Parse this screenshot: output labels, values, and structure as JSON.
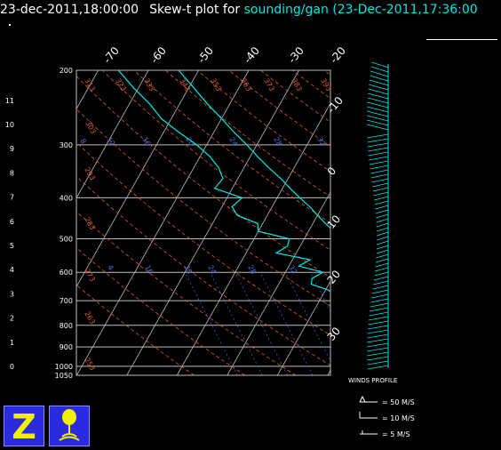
{
  "header": {
    "time_label": "23-dec-2011,18:00:00",
    "plot_label": "Skew-t plot for",
    "source_label": "sounding/gan (23-Dec-2011,17:36:00"
  },
  "chart_data": {
    "type": "line",
    "subtype": "skew-t log-p diagram",
    "y_axis_left": {
      "height_km_ticks": [
        "11",
        "10",
        "9",
        "8",
        "7",
        "6",
        "5",
        "4",
        "3",
        "2",
        "1",
        "0"
      ],
      "pressure_hpa_ticks": [
        "200",
        "300",
        "400",
        "500",
        "600",
        "700",
        "800",
        "900",
        "1000",
        "1050"
      ],
      "scale": "log-pressure"
    },
    "x_axis_top_temperature_c": [
      "-70",
      "-60",
      "-50",
      "-40",
      "-30",
      "-20"
    ],
    "x_axis_right_temperature_c": [
      "-10",
      "0",
      "10",
      "20",
      "30"
    ],
    "dry_adiabat_labels_k": [
      "313",
      "323",
      "333",
      "343",
      "353",
      "363",
      "373",
      "383",
      "393",
      "303",
      "293",
      "283",
      "273",
      "263",
      "253"
    ],
    "mixing_ratio_labels": [
      "8",
      "12",
      "16",
      "20",
      "24",
      "28",
      "32",
      "4",
      "16",
      "20",
      "24",
      "28",
      "32"
    ],
    "grid": true,
    "series": [
      {
        "color": "#00e5e5",
        "p": [
          1000,
          980,
          960,
          940,
          920,
          900,
          880,
          860,
          840,
          820,
          800,
          780,
          760,
          740,
          720,
          700,
          680,
          660,
          640,
          620,
          600,
          580,
          560,
          540,
          520,
          500,
          480,
          460,
          440,
          420,
          400,
          380,
          360,
          340,
          320,
          300,
          280,
          260,
          240,
          220,
          200
        ],
        "t": [
          27.5,
          26.0,
          25.0,
          24.0,
          23.0,
          22.5,
          21.5,
          20.5,
          19.0,
          18.0,
          17.0,
          16.0,
          15.0,
          14.0,
          13.0,
          12.0,
          10.5,
          9.5,
          8.5,
          7.5,
          6.5,
          5.0,
          3.5,
          2.0,
          0.0,
          -2.5,
          -5.0,
          -7.5,
          -10.0,
          -12.5,
          -15.5,
          -18.5,
          -21.5,
          -25.0,
          -28.5,
          -32.0,
          -36.0,
          -40.0,
          -44.5,
          -49.0,
          -54.0
        ]
      },
      {
        "color": "#00e5e5",
        "p": [
          1000,
          980,
          960,
          940,
          920,
          900,
          880,
          860,
          840,
          820,
          800,
          780,
          760,
          740,
          720,
          700,
          680,
          660,
          640,
          620,
          600,
          580,
          560,
          540,
          520,
          500,
          480,
          460,
          440,
          420,
          400,
          380,
          360,
          340,
          320,
          300,
          280,
          260,
          240,
          220,
          200
        ],
        "t": [
          25.0,
          22.0,
          23.0,
          21.0,
          22.0,
          20.5,
          18.0,
          17.0,
          16.0,
          13.5,
          12.5,
          9.0,
          10.0,
          5.0,
          7.0,
          3.0,
          2.5,
          0.5,
          -3.5,
          -4.0,
          -2.5,
          -8.0,
          -6.5,
          -14.0,
          -12.5,
          -13.0,
          -20.0,
          -21.0,
          -26.0,
          -28.0,
          -27.0,
          -33.5,
          -33.0,
          -35.0,
          -38.0,
          -42.0,
          -47.0,
          -52.0,
          -56.0,
          -61.0,
          -66.0
        ]
      }
    ],
    "winds_profile": {
      "title": "WINDS PROFILE",
      "legend": [
        "= 50 M/S",
        "= 10 M/S",
        "= 5 M/S"
      ]
    }
  },
  "colors": {
    "background": "#000000",
    "profile": "#00e5e5",
    "adiabat": "#d8602a",
    "mixing_ratio": "#4a6fd8",
    "grid": "#bdbdbd",
    "logo": "#2a2ae0"
  },
  "icons": [
    "zebra-z-icon",
    "sounding-balloon-icon"
  ]
}
